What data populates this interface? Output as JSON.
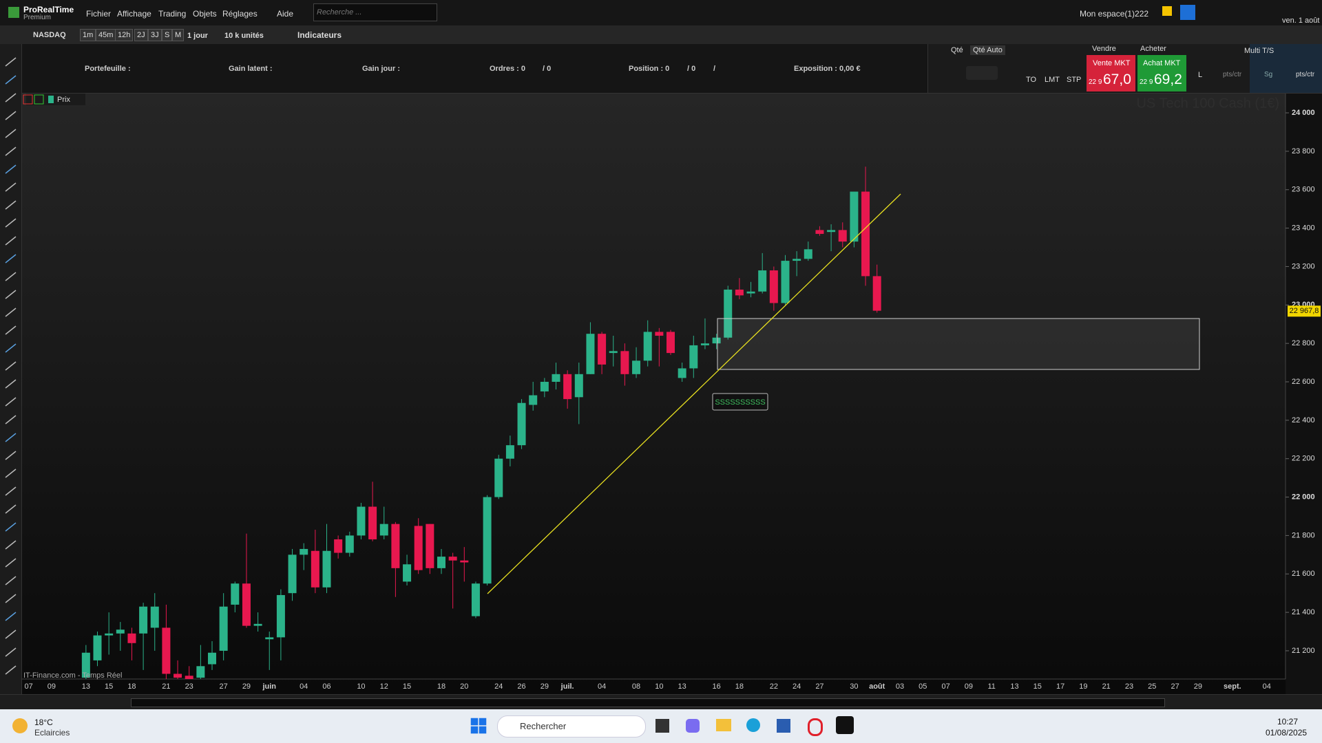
{
  "ui": {
    "app_name": "ProRealTime",
    "app_edition": "Premium",
    "menu": [
      "Fichier",
      "Affichage",
      "Trading",
      "Objets",
      "Réglages"
    ],
    "help": "Aide",
    "search_placeholder": "Recherche ...",
    "workspace": "Mon espace(1)222",
    "date": "ven. 1 août",
    "toolbar": {
      "instrument": "NASDAQ",
      "periods": [
        "1m",
        "45m",
        "12h",
        "2J",
        "3J",
        "S",
        "M"
      ],
      "period": "1 jour",
      "units": "10 k unités",
      "indicators": "Indicateurs"
    },
    "info": {
      "portfolio": "Portefeuille :",
      "latent_gain": "Gain latent :",
      "day_gain": "Gain jour :",
      "orders": "Ordres : 0",
      "orders_sep": "/ 0",
      "position": "Position : 0",
      "position_sep": "/ 0",
      "position_sep2": "/",
      "exposure": "Exposition : 0,00 €"
    },
    "order_panel": {
      "qty": "Qté",
      "qty_auto": "Qté Auto",
      "order_types": [
        "TO",
        "LMT",
        "STP"
      ],
      "sell": "Vendre",
      "buy": "Acheter",
      "sell_mkt": "Vente MKT",
      "buy_mkt": "Achat MKT",
      "sell_price_prefix": "22 9",
      "sell_price": "67,0",
      "buy_price_prefix": "22 9",
      "buy_price": "69,2",
      "limit": "L",
      "limit_unit": "pts/ctr",
      "stop": "Sg",
      "stop_unit": "pts/ctr",
      "multi": "Multi T/S"
    },
    "chart_tab": "Prix",
    "source": "IT-Finance.com - Temps Réel",
    "taskbar": {
      "temperature": "18°C",
      "weather": "Eclaircies",
      "search": "Rechercher",
      "time": "10:27",
      "date": "01/08/2025"
    }
  },
  "chart_data": {
    "type": "candlestick",
    "title": "US Tech 100 Cash (1€)",
    "categories": [
      "07",
      null,
      "09",
      null,
      null,
      "13",
      null,
      "15",
      null,
      "18",
      null,
      null,
      "21",
      null,
      "23",
      null,
      null,
      "27",
      null,
      "29",
      null,
      "juin",
      null,
      null,
      "04",
      null,
      "06",
      null,
      null,
      "10",
      null,
      "12",
      null,
      "15",
      null,
      null,
      "18",
      null,
      "20",
      null,
      null,
      "24",
      null,
      "26",
      null,
      "29",
      null,
      "juil.",
      null,
      null,
      "04",
      null,
      null,
      "08",
      null,
      "10",
      null,
      "13",
      null,
      null,
      "16",
      null,
      "18",
      null,
      null,
      "22",
      null,
      "24",
      null,
      "27",
      null,
      null,
      "30",
      null,
      "août",
      null,
      "03",
      null,
      "05",
      null,
      "07",
      null,
      "09",
      null,
      "11",
      null,
      "13",
      null,
      "15",
      null,
      "17",
      null,
      "19",
      null,
      "21",
      null,
      "23",
      null,
      "25",
      null,
      "27",
      null,
      "29",
      null,
      null,
      "sept.",
      null,
      null,
      "04",
      null
    ],
    "open": [
      null,
      null,
      null,
      null,
      null,
      21060,
      21150,
      21280,
      21290,
      21290,
      21290,
      21320,
      21320,
      21080,
      21070,
      21060,
      21130,
      21200,
      21440,
      21550,
      21330,
      21260,
      21270,
      21500,
      21700,
      21720,
      21530,
      21780,
      21710,
      21800,
      21950,
      21800,
      21860,
      21560,
      21850,
      21860,
      21630,
      21690,
      21670,
      21380,
      21550,
      22000,
      22200,
      22270,
      22480,
      22550,
      22600,
      22640,
      22520,
      22640,
      22850,
      22750,
      22760,
      22640,
      22710,
      22860,
      22860,
      22620,
      22670,
      22790,
      22800,
      22830,
      23080,
      23060,
      23070,
      23180,
      23010,
      23230,
      23240,
      23390,
      23380,
      23390,
      23330,
      23590,
      23150,
      null,
      null,
      null,
      null,
      null,
      null,
      null,
      null,
      null,
      null,
      null,
      null,
      null,
      null,
      null,
      null,
      null,
      null,
      null,
      null,
      null,
      null,
      null,
      null,
      null,
      null,
      null,
      null,
      null,
      null,
      null,
      null,
      null,
      null,
      null
    ],
    "high": [
      null,
      null,
      null,
      null,
      null,
      21230,
      21300,
      21400,
      21350,
      21320,
      21450,
      21500,
      21440,
      21150,
      21120,
      21230,
      21250,
      21500,
      21560,
      21810,
      21400,
      21300,
      21520,
      21730,
      21760,
      21830,
      21860,
      21800,
      21820,
      21970,
      22080,
      21950,
      21870,
      21700,
      21890,
      21860,
      21730,
      21710,
      21740,
      21560,
      22010,
      22220,
      22320,
      22510,
      22600,
      22620,
      22700,
      22660,
      22700,
      22910,
      22860,
      22840,
      22800,
      22780,
      22920,
      22880,
      22870,
      22700,
      22840,
      22930,
      22850,
      23100,
      23140,
      23120,
      23270,
      23200,
      23260,
      23280,
      23330,
      23410,
      23420,
      23430,
      23590,
      23720,
      23210,
      null,
      null,
      null,
      null,
      null,
      null,
      null,
      null,
      null,
      null,
      null,
      null,
      null,
      null,
      null,
      null,
      null,
      null,
      null,
      null,
      null,
      null,
      null,
      null,
      null,
      null,
      null,
      null,
      null,
      null,
      null,
      null,
      null,
      null,
      null
    ],
    "low": [
      null,
      null,
      null,
      null,
      null,
      21050,
      21120,
      21180,
      21200,
      21150,
      21100,
      21200,
      21050,
      21050,
      21050,
      21050,
      21100,
      21150,
      21400,
      21320,
      21300,
      21100,
      21150,
      21460,
      21620,
      21500,
      21500,
      21680,
      21690,
      21780,
      21770,
      21780,
      21480,
      21540,
      21600,
      21600,
      21600,
      21420,
      21560,
      21370,
      21540,
      21990,
      22160,
      22250,
      22450,
      22520,
      22560,
      22460,
      22380,
      22640,
      22640,
      22680,
      22580,
      22620,
      22680,
      22680,
      22740,
      22600,
      22620,
      22770,
      22770,
      22820,
      23030,
      23040,
      23060,
      22970,
      23000,
      23150,
      23230,
      23360,
      23280,
      23300,
      23300,
      23100,
      22960,
      null,
      null,
      null,
      null,
      null,
      null,
      null,
      null,
      null,
      null,
      null,
      null,
      null,
      null,
      null,
      null,
      null,
      null,
      null,
      null,
      null,
      null,
      null,
      null,
      null,
      null,
      null,
      null,
      null,
      null,
      null,
      null,
      null,
      null,
      null
    ],
    "close": [
      null,
      null,
      null,
      null,
      null,
      21190,
      21280,
      21290,
      21310,
      21240,
      21430,
      21430,
      21080,
      21060,
      21050,
      21120,
      21190,
      21430,
      21550,
      21330,
      21340,
      21270,
      21490,
      21700,
      21730,
      21530,
      21720,
      21710,
      21800,
      21950,
      21780,
      21860,
      21630,
      21650,
      21620,
      21630,
      21690,
      21670,
      21660,
      21550,
      22000,
      22200,
      22270,
      22490,
      22530,
      22600,
      22640,
      22510,
      22640,
      22850,
      22690,
      22760,
      22640,
      22710,
      22860,
      22840,
      22750,
      22670,
      22790,
      22800,
      22830,
      23080,
      23050,
      23070,
      23180,
      23010,
      23230,
      23240,
      23290,
      23370,
      23390,
      23330,
      23590,
      23150,
      22970,
      null,
      null,
      null,
      null,
      null,
      null,
      null,
      null,
      null,
      null,
      null,
      null,
      null,
      null,
      null,
      null,
      null,
      null,
      null,
      null,
      null,
      null,
      null,
      null,
      null,
      null,
      null,
      null,
      null,
      null,
      null,
      null,
      null,
      null,
      null
    ],
    "up_color": "#2bb38a",
    "down_color": "#e8184f",
    "ylim": [
      21053,
      24104
    ],
    "yticks": [
      {
        "value": 21200,
        "label": "21 200"
      },
      {
        "value": 21400,
        "label": "21 400"
      },
      {
        "value": 21600,
        "label": "21 600"
      },
      {
        "value": 21800,
        "label": "21 800"
      },
      {
        "value": 22000,
        "label": "22 000"
      },
      {
        "value": 22200,
        "label": "22 200"
      },
      {
        "value": 22400,
        "label": "22 400"
      },
      {
        "value": 22600,
        "label": "22 600"
      },
      {
        "value": 22800,
        "label": "22 800"
      },
      {
        "value": 23000,
        "label": "23 000"
      },
      {
        "value": 23200,
        "label": "23 200"
      },
      {
        "value": 23400,
        "label": "23 400"
      },
      {
        "value": 23600,
        "label": "23 600"
      },
      {
        "value": 23800,
        "label": "23 800"
      },
      {
        "value": 24000,
        "label": "24 000"
      }
    ],
    "last_price": {
      "value": 22967.8,
      "label": "22 967,8"
    },
    "annotation": "SSSSSSSSSS"
  }
}
